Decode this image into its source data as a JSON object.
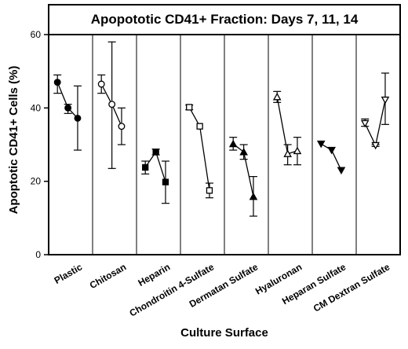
{
  "chart_data": {
    "type": "scatter",
    "title": "Apopototic CD41+ Fraction: Days 7, 11, 14",
    "xlabel": "Culture Surface",
    "ylabel": "Apoptotic CD41+ Cells (%)",
    "ylim": [
      0,
      60
    ],
    "yticks": [
      0,
      20,
      40,
      60
    ],
    "x_days": [
      7,
      11,
      14
    ],
    "categories": [
      {
        "name": "Plastic",
        "marker": "circle-filled",
        "values": [
          47,
          40,
          37.2
        ],
        "err_low": [
          44,
          38.5,
          28.5
        ],
        "err_high": [
          49,
          41,
          46
        ]
      },
      {
        "name": "Chitosan",
        "marker": "circle-open",
        "values": [
          46.5,
          41,
          35
        ],
        "err_low": [
          44,
          23.5,
          30
        ],
        "err_high": [
          49,
          58,
          40
        ]
      },
      {
        "name": "Heparin",
        "marker": "square-filled",
        "values": [
          23.8,
          28,
          19.8
        ],
        "err_low": [
          22,
          27.2,
          14
        ],
        "err_high": [
          25.5,
          28.8,
          25.5
        ]
      },
      {
        "name": "Chondroitin 4-Sulfate",
        "marker": "square-open",
        "values": [
          40.2,
          35,
          17.5
        ],
        "err_low": [
          39.5,
          35,
          15.5
        ],
        "err_high": [
          40.8,
          35,
          19.5
        ]
      },
      {
        "name": "Dermatan Sulfate",
        "marker": "triangle-filled",
        "values": [
          30.2,
          28,
          15.8
        ],
        "err_low": [
          28.5,
          26,
          10.5
        ],
        "err_high": [
          32,
          30,
          21.3
        ]
      },
      {
        "name": "Hyaluronan",
        "marker": "triangle-open",
        "values": [
          43,
          27.5,
          28.3
        ],
        "err_low": [
          41.5,
          24.5,
          24.5
        ],
        "err_high": [
          44.5,
          30,
          32
        ]
      },
      {
        "name": "Heparan Sulfate",
        "marker": "triangle-down-filled",
        "values": [
          30.2,
          28.5,
          23
        ],
        "err_low": [
          30.2,
          28.5,
          23
        ],
        "err_high": [
          30.2,
          28.5,
          23
        ]
      },
      {
        "name": "CM Dextran Sulfate",
        "marker": "triangle-down-open",
        "values": [
          35.8,
          29.8,
          42.2
        ],
        "err_low": [
          35,
          29.5,
          35.5
        ],
        "err_high": [
          37,
          30,
          49.5
        ]
      }
    ],
    "colors": {
      "line": "#000000",
      "background": "#ffffff"
    }
  }
}
